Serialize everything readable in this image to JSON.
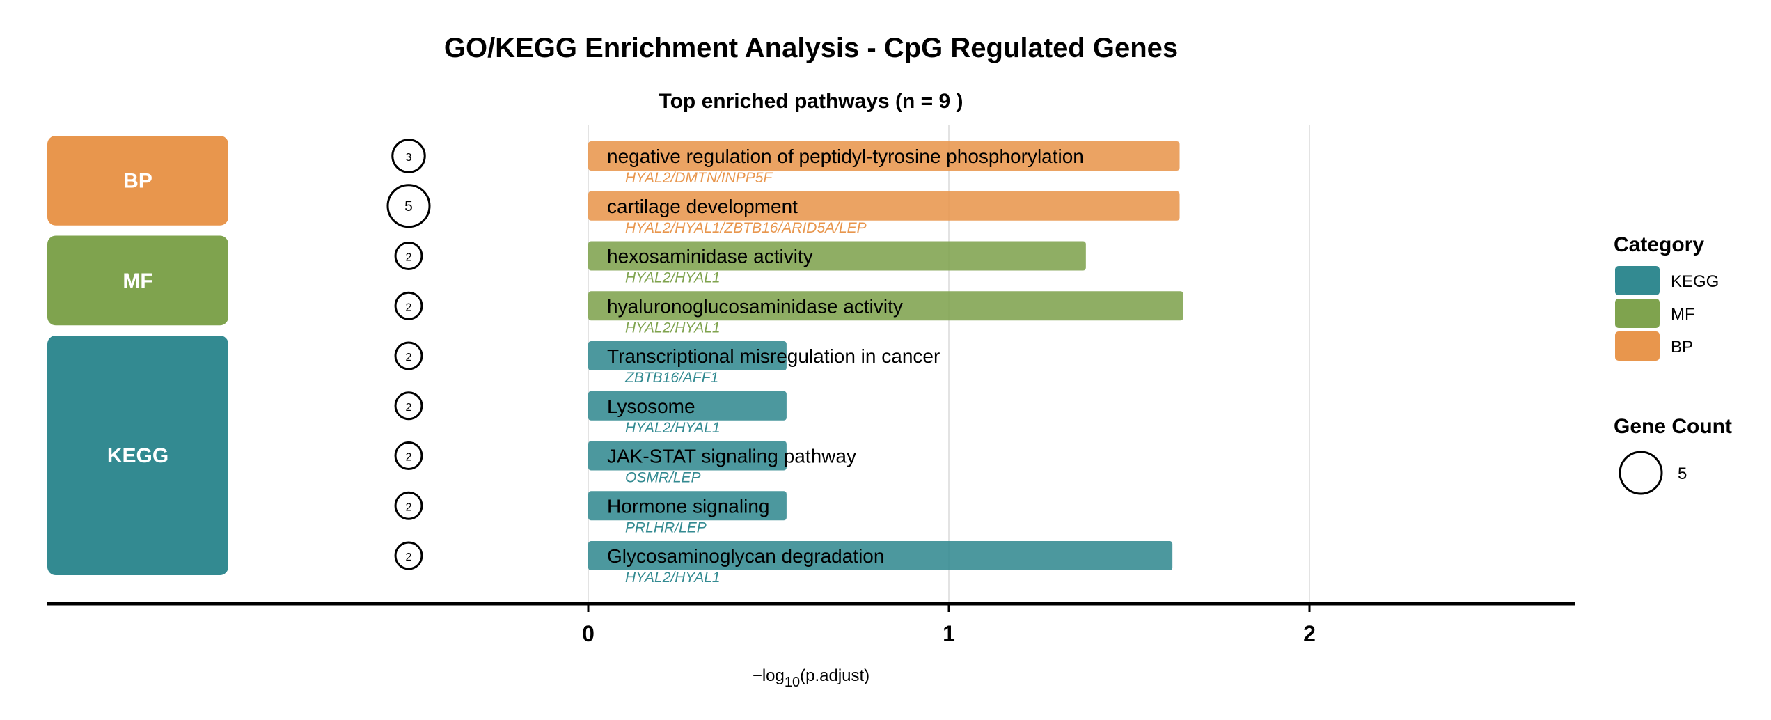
{
  "chart_data": {
    "type": "bar",
    "orientation": "horizontal",
    "title": "GO/KEGG Enrichment Analysis - CpG Regulated Genes",
    "subtitle": "Top enriched pathways (n = 9 )",
    "xlabel_prefix": "−log",
    "xlabel_sub": "10",
    "xlabel_suffix": "(p.adjust)",
    "xlim": [
      0,
      2.65
    ],
    "xticks": [
      0,
      1,
      2
    ],
    "grid": true,
    "colors": {
      "KEGG": "#338a91",
      "MF": "#7fa34e",
      "BP": "#e8964d"
    },
    "categories_panel": [
      {
        "name": "BP",
        "label": "BP",
        "first_row": 0,
        "last_row": 1
      },
      {
        "name": "MF",
        "label": "MF",
        "first_row": 2,
        "last_row": 3
      },
      {
        "name": "KEGG",
        "label": "KEGG",
        "first_row": 4,
        "last_row": 8
      }
    ],
    "rows": [
      {
        "term": "negative regulation of peptidyl-tyrosine phosphorylation",
        "category": "BP",
        "value": 1.64,
        "count": 3,
        "genes": "HYAL2/DMTN/INPP5F"
      },
      {
        "term": "cartilage development",
        "category": "BP",
        "value": 1.64,
        "count": 5,
        "genes": "HYAL2/HYAL1/ZBTB16/ARID5A/LEP"
      },
      {
        "term": "hexosaminidase activity",
        "category": "MF",
        "value": 1.38,
        "count": 2,
        "genes": "HYAL2/HYAL1"
      },
      {
        "term": "hyaluronoglucosaminidase activity",
        "category": "MF",
        "value": 1.65,
        "count": 2,
        "genes": "HYAL2/HYAL1"
      },
      {
        "term": "Transcriptional misregulation in cancer",
        "category": "KEGG",
        "value": 0.55,
        "count": 2,
        "genes": "ZBTB16/AFF1"
      },
      {
        "term": "Lysosome",
        "category": "KEGG",
        "value": 0.55,
        "count": 2,
        "genes": "HYAL2/HYAL1"
      },
      {
        "term": "JAK-STAT signaling pathway",
        "category": "KEGG",
        "value": 0.55,
        "count": 2,
        "genes": "OSMR/LEP"
      },
      {
        "term": "Hormone signaling",
        "category": "KEGG",
        "value": 0.55,
        "count": 2,
        "genes": "PRLHR/LEP"
      },
      {
        "term": "Glycosaminoglycan degradation",
        "category": "KEGG",
        "value": 1.62,
        "count": 2,
        "genes": "HYAL2/HYAL1"
      }
    ],
    "legend": {
      "placement": "right",
      "category_title": "Category",
      "category_items": [
        "KEGG",
        "MF",
        "BP"
      ],
      "count_title": "Gene Count",
      "count_items": [
        5
      ]
    }
  }
}
